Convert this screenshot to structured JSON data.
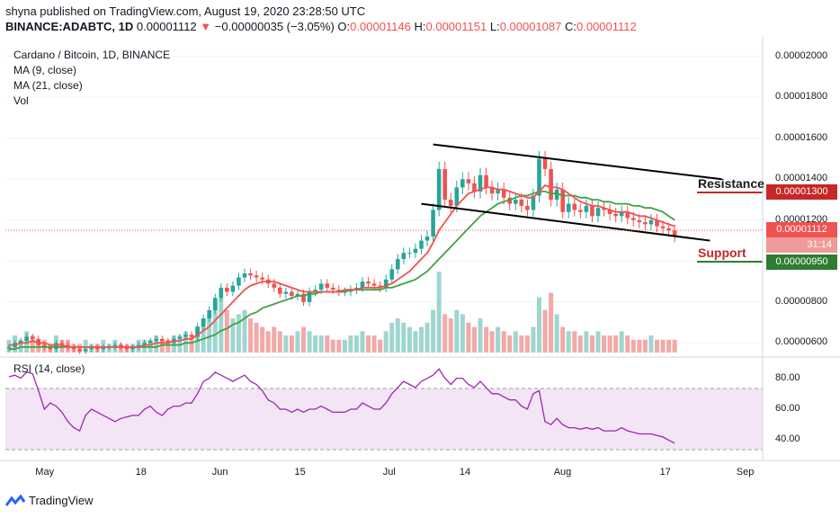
{
  "header": {
    "publisher": "shyna published on TradingView.com, August 19, 2020 23:28:50 UTC",
    "symbol": "BINANCE:ADABTC, 1D",
    "price": "0.00001112",
    "change": "−0.00000035 (−3.05%)",
    "o_label": "O:",
    "o": "0.00001146",
    "h_label": "H:",
    "h": "0.00001151",
    "l_label": "L:",
    "l": "0.00001087",
    "c_label": "C:",
    "c": "0.00001112"
  },
  "legend": {
    "title": "Cardano / Bitcoin, 1D, BINANCE",
    "ma9": "MA (9, close)",
    "ma21": "MA (21, close)",
    "vol": "Vol"
  },
  "rsi_label": "RSI (14, close)",
  "annotations": {
    "resistance": "Resistance",
    "support": "Support"
  },
  "badges": {
    "resistance": "0.00001300",
    "last": "0.00001112",
    "countdown": "31:14",
    "support": "0.00000950"
  },
  "brand": "TradingView",
  "colors": {
    "up": "#26a69a",
    "down": "#ef5350",
    "ma9": "#ef5350",
    "ma21": "#43a047",
    "rsi": "#9c27b0",
    "rsi_band": "#f3e5f5"
  },
  "chart_data": {
    "type": "candlestick",
    "x_ticks": [
      "May",
      "18",
      "Jun",
      "15",
      "Jul",
      "14",
      "Aug",
      "17",
      "Sep"
    ],
    "y_ticks": [
      "0.00002000",
      "0.00001800",
      "0.00001600",
      "0.00001400",
      "0.00001200",
      "0.00001000",
      "0.00000800",
      "0.00000600"
    ],
    "rsi_ticks": [
      "80.00",
      "60.00",
      "40.00"
    ],
    "ylim": [
      5.4e-06,
      2.1e-05
    ],
    "rsi_lim": [
      28,
      92
    ],
    "close": [
      5.8e-06,
      6e-06,
      6.1e-06,
      6.3e-06,
      6.2e-06,
      5.9e-06,
      5.8e-06,
      5.7e-06,
      6e-06,
      5.9e-06,
      5.8e-06,
      5.7e-06,
      5.6e-06,
      5.7e-06,
      5.8e-06,
      5.7e-06,
      5.8e-06,
      5.8e-06,
      5.9e-06,
      5.8e-06,
      5.7e-06,
      5.8e-06,
      5.9e-06,
      6e-06,
      6.1e-06,
      6.2e-06,
      6.1e-06,
      6e-06,
      6.2e-06,
      6.3e-06,
      6.4e-06,
      6.3e-06,
      6.8e-06,
      7.2e-06,
      7.6e-06,
      8.2e-06,
      8.7e-06,
      8.5e-06,
      8.8e-06,
      9.2e-06,
      9.4e-06,
      9.3e-06,
      9.2e-06,
      9.1e-06,
      8.9e-06,
      8.7e-06,
      8.4e-06,
      8.5e-06,
      8.3e-06,
      8.4e-06,
      8e-06,
      8.5e-06,
      8.6e-06,
      8.9e-06,
      8.7e-06,
      8.6e-06,
      8.5e-06,
      8.5e-06,
      8.6e-06,
      8.7e-06,
      9e-06,
      8.9e-06,
      8.8e-06,
      8.7e-06,
      9.1e-06,
      9.6e-06,
      1.01e-05,
      1.04e-05,
      1.04e-05,
      1.06e-05,
      1.1e-05,
      1.12e-05,
      1.25e-05,
      1.45e-05,
      1.3e-05,
      1.27e-05,
      1.36e-05,
      1.4e-05,
      1.38e-05,
      1.34e-05,
      1.42e-05,
      1.36e-05,
      1.33e-05,
      1.35e-05,
      1.31e-05,
      1.28e-05,
      1.3e-05,
      1.27e-05,
      1.25e-05,
      1.32e-05,
      1.5e-05,
      1.45e-05,
      1.3e-05,
      1.35e-05,
      1.24e-05,
      1.28e-05,
      1.25e-05,
      1.24e-05,
      1.27e-05,
      1.22e-05,
      1.26e-05,
      1.25e-05,
      1.23e-05,
      1.22e-05,
      1.24e-05,
      1.21e-05,
      1.2e-05,
      1.19e-05,
      1.18e-05,
      1.2e-05,
      1.17e-05,
      1.16e-05,
      1.15e-05,
      1.12e-05
    ],
    "ma9": [
      5.9e-06,
      5.9e-06,
      6e-06,
      6e-06,
      6.1e-06,
      6e-06,
      6e-06,
      5.9e-06,
      5.9e-06,
      5.9e-06,
      5.8e-06,
      5.8e-06,
      5.8e-06,
      5.8e-06,
      5.8e-06,
      5.8e-06,
      5.8e-06,
      5.8e-06,
      5.8e-06,
      5.8e-06,
      5.8e-06,
      5.8e-06,
      5.8e-06,
      5.9e-06,
      5.9e-06,
      6e-06,
      6e-06,
      6e-06,
      6.1e-06,
      6.1e-06,
      6.2e-06,
      6.2e-06,
      6.4e-06,
      6.6e-06,
      6.8e-06,
      7.1e-06,
      7.4e-06,
      7.7e-06,
      8e-06,
      8.3e-06,
      8.6e-06,
      8.8e-06,
      8.9e-06,
      9e-06,
      9e-06,
      9e-06,
      8.9e-06,
      8.8e-06,
      8.7e-06,
      8.6e-06,
      8.5e-06,
      8.5e-06,
      8.5e-06,
      8.5e-06,
      8.5e-06,
      8.5e-06,
      8.5e-06,
      8.6e-06,
      8.6e-06,
      8.6e-06,
      8.7e-06,
      8.7e-06,
      8.7e-06,
      8.7e-06,
      8.8e-06,
      8.9e-06,
      9.1e-06,
      9.3e-06,
      9.5e-06,
      9.8e-06,
      1.01e-05,
      1.04e-05,
      1.09e-05,
      1.15e-05,
      1.19e-05,
      1.23e-05,
      1.27e-05,
      1.3e-05,
      1.33e-05,
      1.34e-05,
      1.35e-05,
      1.36e-05,
      1.36e-05,
      1.35e-05,
      1.35e-05,
      1.34e-05,
      1.33e-05,
      1.32e-05,
      1.31e-05,
      1.31e-05,
      1.34e-05,
      1.37e-05,
      1.36e-05,
      1.36e-05,
      1.35e-05,
      1.33e-05,
      1.31e-05,
      1.29e-05,
      1.28e-05,
      1.27e-05,
      1.27e-05,
      1.26e-05,
      1.25e-05,
      1.24e-05,
      1.24e-05,
      1.24e-05,
      1.23e-05,
      1.22e-05,
      1.22e-05,
      1.21e-05,
      1.2e-05,
      1.19e-05,
      1.18e-05,
      1.17e-05
    ],
    "ma21": [
      5.7e-06,
      5.7e-06,
      5.8e-06,
      5.8e-06,
      5.8e-06,
      5.8e-06,
      5.8e-06,
      5.8e-06,
      5.8e-06,
      5.8e-06,
      5.8e-06,
      5.8e-06,
      5.8e-06,
      5.8e-06,
      5.8e-06,
      5.8e-06,
      5.8e-06,
      5.8e-06,
      5.8e-06,
      5.8e-06,
      5.8e-06,
      5.8e-06,
      5.8e-06,
      5.8e-06,
      5.8e-06,
      5.8e-06,
      5.9e-06,
      5.9e-06,
      5.9e-06,
      5.9e-06,
      6e-06,
      6e-06,
      6.1e-06,
      6.2e-06,
      6.3e-06,
      6.4e-06,
      6.6e-06,
      6.7e-06,
      6.9e-06,
      7e-06,
      7.2e-06,
      7.4e-06,
      7.5e-06,
      7.7e-06,
      7.8e-06,
      7.9e-06,
      8e-06,
      8.1e-06,
      8.2e-06,
      8.3e-06,
      8.3e-06,
      8.4e-06,
      8.4e-06,
      8.5e-06,
      8.5e-06,
      8.5e-06,
      8.5e-06,
      8.5e-06,
      8.6e-06,
      8.6e-06,
      8.6e-06,
      8.6e-06,
      8.6e-06,
      8.6e-06,
      8.7e-06,
      8.7e-06,
      8.8e-06,
      8.9e-06,
      9e-06,
      9.1e-06,
      9.3e-06,
      9.5e-06,
      9.8e-06,
      1.01e-05,
      1.04e-05,
      1.07e-05,
      1.1e-05,
      1.13e-05,
      1.16e-05,
      1.19e-05,
      1.22e-05,
      1.24e-05,
      1.26e-05,
      1.28e-05,
      1.29e-05,
      1.3e-05,
      1.31e-05,
      1.32e-05,
      1.32e-05,
      1.33e-05,
      1.34e-05,
      1.34e-05,
      1.33e-05,
      1.33e-05,
      1.32e-05,
      1.32e-05,
      1.32e-05,
      1.31e-05,
      1.31e-05,
      1.3e-05,
      1.3e-05,
      1.29e-05,
      1.29e-05,
      1.28e-05,
      1.28e-05,
      1.28e-05,
      1.27e-05,
      1.27e-05,
      1.26e-05,
      1.26e-05,
      1.25e-05,
      1.24e-05,
      1.22e-05,
      1.2e-05
    ],
    "volume": [
      3,
      4,
      3,
      5,
      4,
      3,
      3,
      2,
      4,
      3,
      3,
      2,
      2,
      3,
      2,
      2,
      3,
      2,
      3,
      2,
      2,
      2,
      3,
      3,
      3,
      4,
      3,
      3,
      4,
      4,
      5,
      4,
      6,
      8,
      9,
      12,
      13,
      10,
      8,
      9,
      10,
      8,
      7,
      6,
      5,
      6,
      5,
      4,
      4,
      5,
      6,
      5,
      4,
      4,
      4,
      3,
      3,
      3,
      4,
      4,
      5,
      4,
      4,
      3,
      5,
      7,
      8,
      7,
      6,
      5,
      6,
      7,
      10,
      19,
      9,
      8,
      10,
      9,
      7,
      6,
      8,
      6,
      5,
      6,
      5,
      4,
      5,
      4,
      4,
      6,
      13,
      10,
      14,
      9,
      6,
      5,
      5,
      4,
      5,
      4,
      5,
      4,
      4,
      4,
      5,
      4,
      3,
      3,
      3,
      4,
      3,
      3,
      3,
      3
    ],
    "rsi": [
      81,
      82,
      80,
      84,
      83,
      72,
      60,
      64,
      62,
      58,
      52,
      48,
      46,
      56,
      60,
      58,
      56,
      54,
      52,
      54,
      55,
      56,
      56,
      60,
      62,
      58,
      56,
      60,
      62,
      62,
      64,
      64,
      70,
      78,
      80,
      84,
      82,
      80,
      78,
      80,
      82,
      78,
      76,
      72,
      66,
      64,
      60,
      60,
      58,
      60,
      58,
      60,
      60,
      62,
      60,
      58,
      58,
      58,
      60,
      60,
      64,
      62,
      60,
      60,
      64,
      70,
      74,
      78,
      76,
      74,
      78,
      80,
      82,
      86,
      80,
      76,
      80,
      80,
      76,
      74,
      78,
      74,
      70,
      70,
      68,
      66,
      66,
      62,
      60,
      70,
      72,
      52,
      50,
      54,
      50,
      48,
      48,
      47,
      48,
      47,
      48,
      46,
      46,
      46,
      48,
      46,
      45,
      44,
      44,
      44,
      43,
      42,
      40,
      38
    ],
    "trendlines": [
      {
        "name": "Resistance",
        "points": [
          [
            72,
            1.57e-05
          ],
          [
            121,
            1.4e-05
          ]
        ]
      },
      {
        "name": "Support",
        "points": [
          [
            70,
            1.28e-05
          ],
          [
            119,
            1.1e-05
          ]
        ]
      }
    ]
  }
}
